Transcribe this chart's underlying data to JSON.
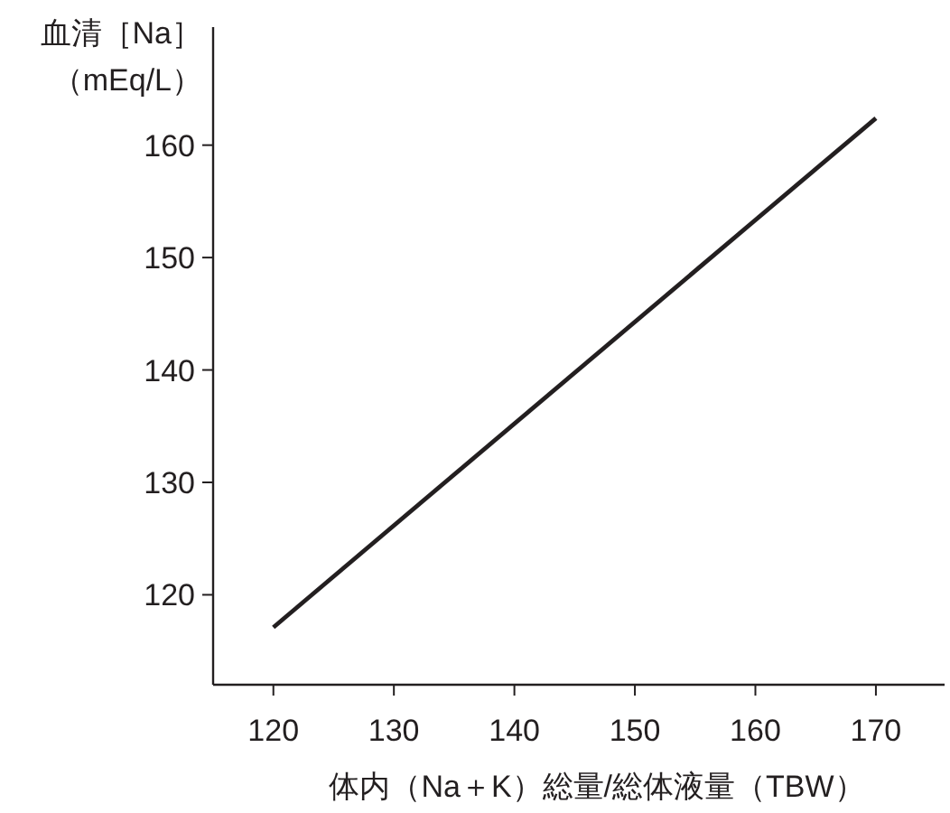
{
  "chart_data": {
    "type": "line",
    "xlabel": "体内（Na＋K）総量/総体液量（TBW）",
    "ylabel": "血清［Na］",
    "annotations": [
      "（mEq/L）"
    ],
    "x": [
      120,
      170
    ],
    "series": [
      {
        "color": "#231f20",
        "values": [
          117.1,
          162.4
        ]
      }
    ],
    "xlim": [
      115,
      175.7
    ],
    "ylim": [
      112,
      170.5
    ],
    "xticks": [
      120,
      130,
      140,
      150,
      160,
      170
    ],
    "yticks": [
      120,
      130,
      140,
      150,
      160
    ],
    "grid": false,
    "marker": "none",
    "line_style": "solid"
  }
}
